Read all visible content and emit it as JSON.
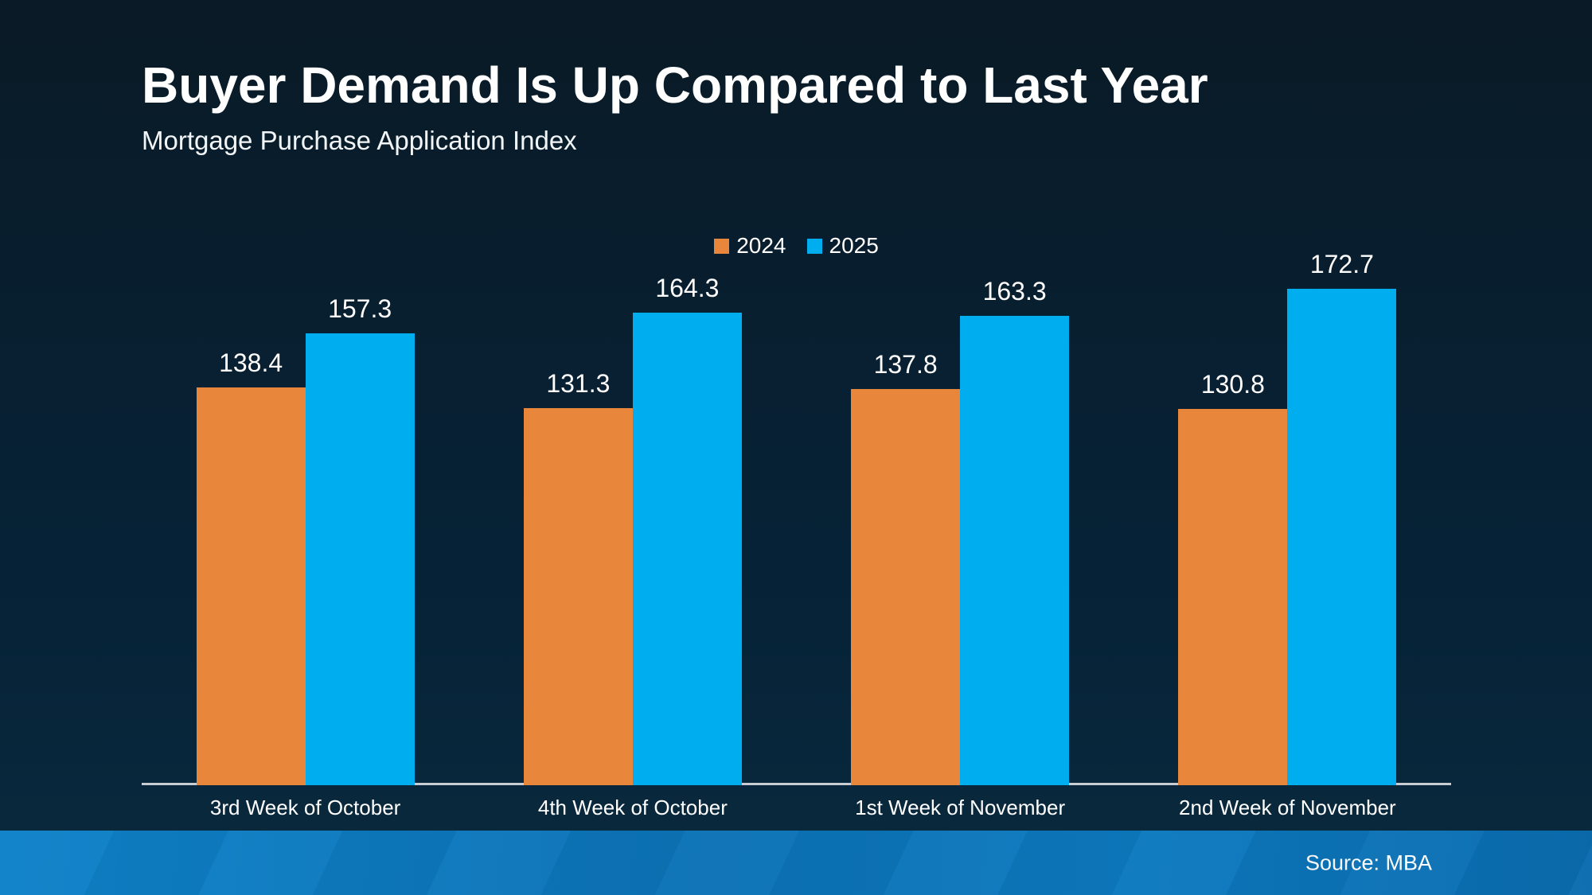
{
  "header": {
    "title": "Buyer Demand Is Up Compared to Last Year",
    "subtitle": "Mortgage Purchase Application Index"
  },
  "chart_data": {
    "type": "bar",
    "title": "Buyer Demand Is Up Compared to Last Year",
    "subtitle": "Mortgage Purchase Application Index",
    "categories": [
      "3rd Week of October",
      "4th Week of October",
      "1st Week of November",
      "2nd Week of November"
    ],
    "series": [
      {
        "name": "2024",
        "color": "#E8873C",
        "values": [
          138.4,
          131.3,
          137.8,
          130.8
        ]
      },
      {
        "name": "2025",
        "color": "#00AEEF",
        "values": [
          157.3,
          164.3,
          163.3,
          172.7
        ]
      }
    ],
    "xlabel": "",
    "ylabel": "",
    "ylim": [
      0,
      180
    ],
    "grid": false,
    "legend_position": "top-center",
    "value_labels": true
  },
  "footer": {
    "source": "Source: MBA"
  },
  "colors": {
    "background_top": "#0A1A26",
    "background_bottom": "#0B2A3E",
    "series_2024": "#E8873C",
    "series_2025": "#00AEEF",
    "axis_line": "#C9CDD3",
    "footer_gradient_left": "#0E81C9",
    "footer_gradient_right": "#0A6CAE",
    "text": "#FFFFFF"
  }
}
